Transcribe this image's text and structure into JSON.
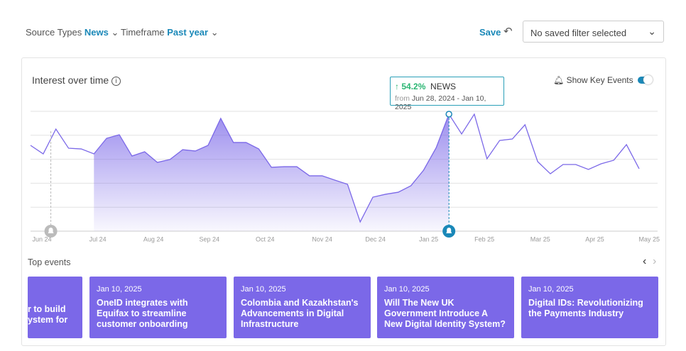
{
  "filters": {
    "source_label": "Source Types",
    "source_value": "News",
    "timeframe_label": "Timeframe",
    "timeframe_value": "Past year",
    "save": "Save",
    "saved_filter": "No saved filter selected"
  },
  "chart_data": {
    "type": "area_line",
    "title": "Interest over time",
    "show_key_events": "Show Key Events",
    "values": [
      71.6,
      64.5,
      85.2,
      69.2,
      68.6,
      64.5,
      77.5,
      80.5,
      62.7,
      66.3,
      57.4,
      59.8,
      68.0,
      66.9,
      71.6,
      94.1,
      74.0,
      74.0,
      68.6,
      53.3,
      53.8,
      53.8,
      46.2,
      46.2,
      42.6,
      39.1,
      7.7,
      28.4,
      30.8,
      32.5,
      37.9,
      50.9,
      69.8,
      97.6,
      81.1,
      97.6,
      60.4,
      75.7,
      76.9,
      88.8,
      58.0,
      47.9,
      55.6,
      55.6,
      51.5,
      56.2,
      59.2,
      72.2,
      52.1
    ],
    "color": "#7b68e8",
    "ylim": [
      0,
      100
    ],
    "xlim": [
      0,
      48
    ],
    "xticks": [
      {
        "value": 0.9,
        "label": "Jun 24"
      },
      {
        "value": 5.3,
        "label": "Jul 24"
      },
      {
        "value": 9.7,
        "label": "Aug 24"
      },
      {
        "value": 14.1,
        "label": "Sep 24"
      },
      {
        "value": 18.5,
        "label": "Oct 24"
      },
      {
        "value": 23.0,
        "label": "Nov 24"
      },
      {
        "value": 27.2,
        "label": "Dec 24"
      },
      {
        "value": 31.4,
        "label": "Jan 25"
      },
      {
        "value": 35.8,
        "label": "Feb 25"
      },
      {
        "value": 40.2,
        "label": "Mar 25"
      },
      {
        "value": 44.5,
        "label": "Apr 25"
      },
      {
        "value": 48.8,
        "label": "May 25"
      }
    ],
    "grid": true,
    "highlight": {
      "start": 5,
      "end": 33
    },
    "key_events": [
      1.6,
      33
    ],
    "tooltip": {
      "change": "54.2%",
      "series": "NEWS",
      "from": "from",
      "range": "Jun 28, 2024 - Jan 10, 2025"
    }
  },
  "events": {
    "title": "Top events",
    "cards": [
      {
        "date": "",
        "title": "r to build ystem for"
      },
      {
        "date": "Jan 10, 2025",
        "title": "OneID integrates with Equifax to streamline customer onboarding"
      },
      {
        "date": "Jan 10, 2025",
        "title": "Colombia and Kazakhstan's Advancements in Digital Infrastructure"
      },
      {
        "date": "Jan 10, 2025",
        "title": "Will The New UK Government Introduce A New Digital Identity System?"
      },
      {
        "date": "Jan 10, 2025",
        "title": "Digital IDs: Revolutionizing the Payments Industry"
      }
    ]
  }
}
